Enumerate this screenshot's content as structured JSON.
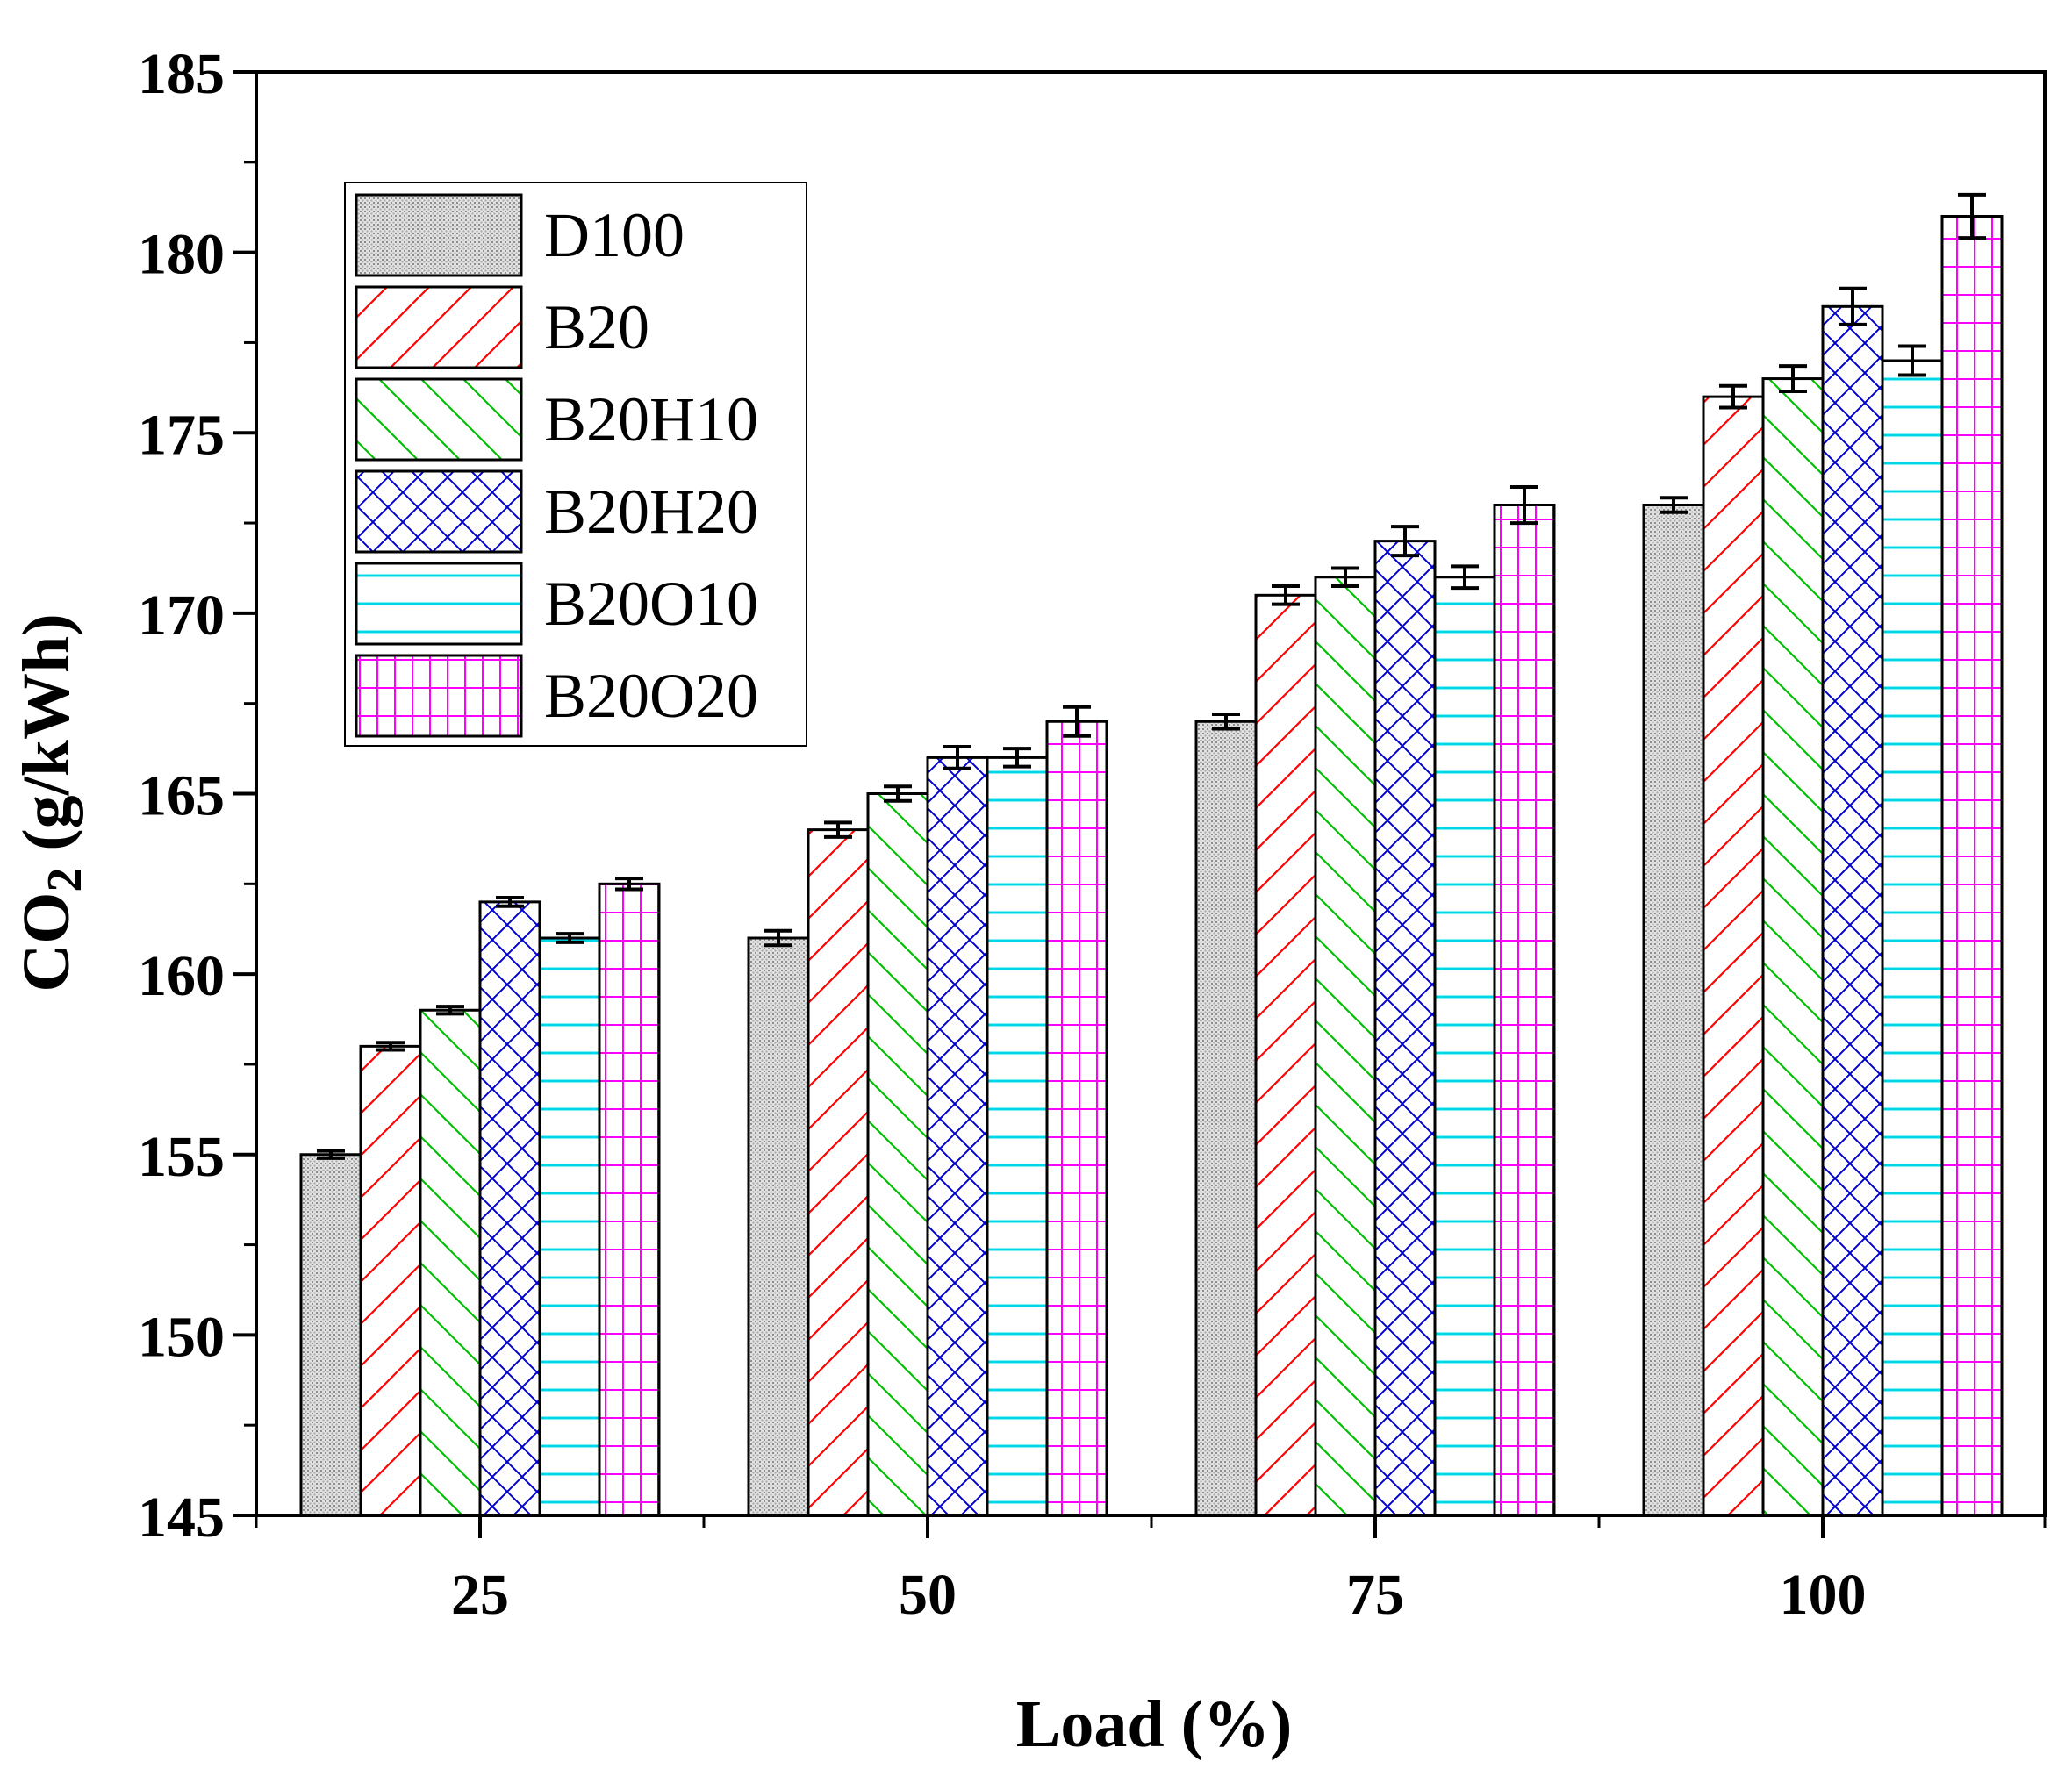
{
  "chart_data": {
    "type": "bar",
    "categories": [
      "25",
      "50",
      "75",
      "100"
    ],
    "xlabel": "Load (%)",
    "ylabel_main": "CO",
    "ylabel_sub": "2",
    "ylabel_unit": " (g/kWh)",
    "ylim": [
      145,
      185
    ],
    "yticks": [
      145,
      150,
      155,
      160,
      165,
      170,
      175,
      180,
      185
    ],
    "legend_position": "top-left",
    "series": [
      {
        "name": "D100",
        "pattern": "dots",
        "color": "#9a9a9a",
        "values": [
          155.0,
          161.0,
          167.0,
          173.0
        ],
        "errors": [
          0.1,
          0.2,
          0.2,
          0.2
        ]
      },
      {
        "name": "B20",
        "pattern": "diag-up",
        "color": "#ff0000",
        "values": [
          158.0,
          164.0,
          170.5,
          176.0
        ],
        "errors": [
          0.1,
          0.2,
          0.25,
          0.3
        ]
      },
      {
        "name": "B20H10",
        "pattern": "diag-down",
        "color": "#00c000",
        "values": [
          159.0,
          165.0,
          171.0,
          176.5
        ],
        "errors": [
          0.1,
          0.2,
          0.25,
          0.35
        ]
      },
      {
        "name": "B20H20",
        "pattern": "crosshatch",
        "color": "#0000cc",
        "values": [
          162.0,
          166.0,
          172.0,
          178.5
        ],
        "errors": [
          0.12,
          0.3,
          0.4,
          0.5
        ]
      },
      {
        "name": "B20O10",
        "pattern": "horizontal",
        "color": "#00d8e8",
        "values": [
          161.0,
          166.0,
          171.0,
          177.0
        ],
        "errors": [
          0.12,
          0.25,
          0.3,
          0.4
        ]
      },
      {
        "name": "B20O20",
        "pattern": "grid",
        "color": "#ff00ff",
        "values": [
          162.5,
          167.0,
          173.0,
          181.0
        ],
        "errors": [
          0.15,
          0.4,
          0.5,
          0.6
        ]
      }
    ]
  }
}
